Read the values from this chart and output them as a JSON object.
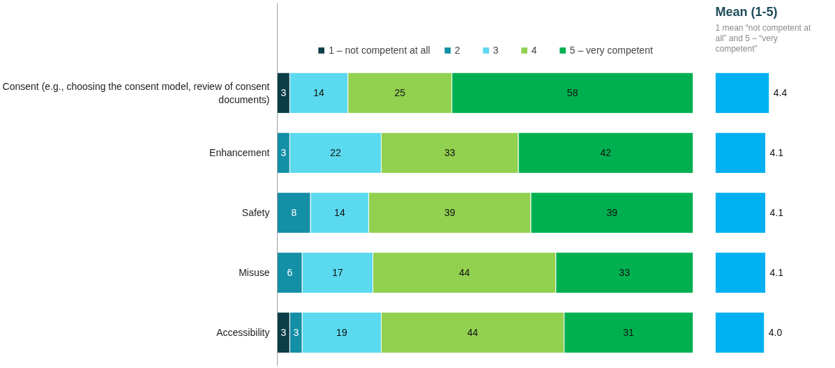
{
  "chart_data": [
    {
      "type": "bar",
      "orientation": "horizontal",
      "stacked": true,
      "legend": "top",
      "data_labels": true,
      "categories": [
        "Consent (e.g., choosing the consent model, review of consent documents)",
        "Enhancement",
        "Safety",
        "Misuse",
        "Accessibility"
      ],
      "series": [
        {
          "name": "1 – not competent at all",
          "color": "#0a3d47",
          "values": [
            3,
            null,
            null,
            null,
            3
          ]
        },
        {
          "name": "2",
          "color": "#138fa6",
          "values": [
            null,
            3,
            8,
            6,
            3
          ]
        },
        {
          "name": "3",
          "color": "#5bd9ee",
          "values": [
            14,
            22,
            14,
            17,
            19
          ]
        },
        {
          "name": "4",
          "color": "#92d050",
          "values": [
            25,
            33,
            39,
            44,
            44
          ]
        },
        {
          "name": "5 – very competent",
          "color": "#00b050",
          "values": [
            58,
            42,
            39,
            33,
            31
          ]
        }
      ]
    },
    {
      "type": "bar",
      "orientation": "horizontal",
      "value_labels": [
        "4.4",
        "4.1",
        "4.1",
        "4.1",
        "4.0"
      ],
      "title": "Mean (1-5)",
      "subtitle": "1 mean “not competent at all” and 5 – “very competent”",
      "categories": [
        null,
        null,
        null,
        null,
        null
      ],
      "values": [
        4.4,
        4.1,
        4.1,
        4.1,
        4.0
      ],
      "color": "#00b0f0"
    }
  ]
}
